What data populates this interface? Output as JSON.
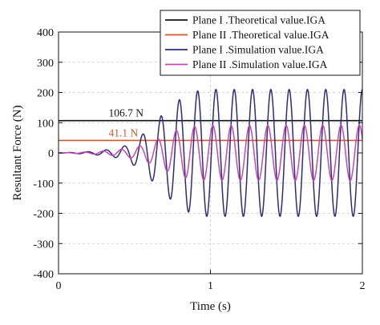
{
  "chart_data": {
    "type": "line",
    "title": "",
    "xlabel": "Time (s)",
    "ylabel": "Resultant Force (N)",
    "xlim": [
      0,
      2
    ],
    "ylim": [
      -400,
      400
    ],
    "x_ticks": [
      0,
      1,
      2
    ],
    "y_ticks": [
      -400,
      -300,
      -200,
      -100,
      0,
      100,
      200,
      300,
      400
    ],
    "x_tick_labels": [
      "0",
      "1",
      "2"
    ],
    "y_tick_labels": [
      "-400",
      "-300",
      "-200",
      "-100",
      "0",
      "100",
      "200",
      "300",
      "400"
    ],
    "grid": true,
    "legend_position": "top-right",
    "series": [
      {
        "name": "Plane I .Theoretical value.IGA",
        "kind": "constant",
        "value": 106.7,
        "color": "#111111"
      },
      {
        "name": "Plane II .Theoretical value.IGA",
        "kind": "constant",
        "value": 41.1,
        "color": "#d2572a"
      },
      {
        "name": "Plane I .Simulation value.IGA",
        "kind": "oscillation",
        "color": "#2c2c7a",
        "frequency_hz": 8.3,
        "peak_times": [
          0.29,
          0.54,
          0.68,
          0.82,
          0.94,
          1.06,
          1.18,
          1.3,
          1.42,
          1.54,
          1.66,
          1.78,
          1.9,
          2.0
        ],
        "envelope": {
          "t": [
            0,
            0.2,
            0.35,
            0.45,
            0.55,
            0.65,
            0.75,
            0.85,
            0.95,
            2.0
          ],
          "amp": [
            0,
            4,
            12,
            25,
            60,
            110,
            160,
            195,
            210,
            210
          ]
        }
      },
      {
        "name": "Plane II .Simulation value.IGA",
        "kind": "oscillation",
        "color": "#c546b4",
        "frequency_hz": 8.3,
        "peak_times": [
          0.28,
          0.52,
          0.64,
          0.78,
          0.9,
          1.02,
          1.14,
          1.26,
          1.38,
          1.5,
          1.62,
          1.74,
          1.86,
          1.98
        ],
        "envelope": {
          "t": [
            0,
            0.2,
            0.35,
            0.45,
            0.55,
            0.65,
            0.75,
            0.85,
            0.95,
            2.0
          ],
          "amp": [
            0,
            3,
            8,
            14,
            25,
            45,
            70,
            85,
            90,
            92
          ]
        }
      }
    ],
    "annotations": [
      {
        "text": "106.7 N",
        "x": 0.33,
        "y": 106.7,
        "color": "#111111"
      },
      {
        "text": "41.1 N",
        "x": 0.33,
        "y": 41.1,
        "color": "#d2572a"
      }
    ]
  }
}
